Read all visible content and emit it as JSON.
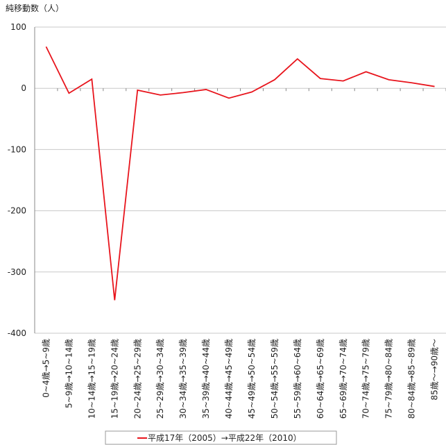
{
  "chart_data": {
    "type": "line",
    "y_label": "純移動数（人）",
    "categories": [
      "0~4歳→5~9歳",
      "5~9歳→10~14歳",
      "10~14歳→15~19歳",
      "15~19歳→20~24歳",
      "20~24歳→25~29歳",
      "25~29歳→30~34歳",
      "30~34歳→35~39歳",
      "35~39歳→40~44歳",
      "40~44歳→45~49歳",
      "45~49歳→50~54歳",
      "50~54歳→55~59歳",
      "55~59歳→60~64歳",
      "60~64歳→65~69歳",
      "65~69歳→70~74歳",
      "70~74歳→75~79歳",
      "75~79歳→80~84歳",
      "80~84歳→85~89歳",
      "85歳～→90歳～"
    ],
    "series": [
      {
        "name": "平成17年（2005）→平成22年（2010）",
        "color": "#e8141c",
        "values": [
          68,
          -8,
          15,
          -346,
          -3,
          -11,
          -7,
          -2,
          -16,
          -6,
          14,
          48,
          16,
          12,
          27,
          14,
          9,
          3
        ]
      }
    ],
    "ylim": [
      -400,
      100
    ],
    "yticks": [
      -400,
      -300,
      -200,
      -100,
      0,
      100
    ],
    "grid": true
  }
}
